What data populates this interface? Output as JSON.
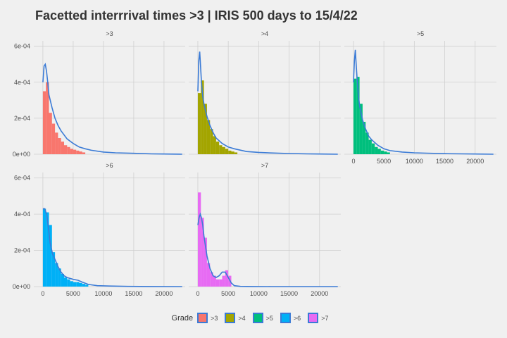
{
  "title": "Facetted interrrival times >3 | IRIS 500 days to 15/4/22",
  "chart_data": {
    "type": "histogram",
    "x_ticks": [
      0,
      5000,
      10000,
      15000,
      20000
    ],
    "x_tick_labels": [
      "0",
      "5000",
      "10000",
      "15000",
      "20000"
    ],
    "xlim": [
      -1500,
      23500
    ],
    "y_ticks": [
      0,
      0.0002,
      0.0004,
      0.0006
    ],
    "y_tick_labels": [
      "0e+00",
      "2e-04",
      "4e-04",
      "6e-04"
    ],
    "ylim": [
      0,
      0.00063
    ],
    "grid": true,
    "facets": [
      {
        "label": ">3",
        "fill": "#f8766d",
        "histogram": {
          "bin_width": 500,
          "start": 0,
          "values": [
            0.00035,
            0.0004,
            0.00023,
            0.00017,
            0.00012,
            9e-05,
            7e-05,
            5e-05,
            4e-05,
            3e-05,
            2.5e-05,
            2e-05,
            1.5e-05,
            1e-05
          ]
        },
        "density": {
          "x": [
            0,
            200,
            400,
            600,
            800,
            1000,
            1500,
            2000,
            2500,
            3000,
            4000,
            5000,
            6000,
            7000,
            8000,
            10000,
            12000,
            15000,
            18000,
            20000,
            23000
          ],
          "y": [
            0.0004,
            0.00049,
            0.0005,
            0.00046,
            0.0004,
            0.00033,
            0.00026,
            0.0002,
            0.00016,
            0.00013,
            8.5e-05,
            6e-05,
            4e-05,
            3e-05,
            2.2e-05,
            1.2e-05,
            8e-06,
            5e-06,
            2e-06,
            1e-06,
            0
          ]
        }
      },
      {
        "label": ">4",
        "fill": "#a3a500",
        "histogram": {
          "bin_width": 500,
          "start": 0,
          "values": [
            0.00034,
            0.00041,
            0.00028,
            0.00019,
            0.00014,
            0.0001,
            7e-05,
            5e-05,
            4e-05,
            3e-05,
            2e-05,
            1.5e-05,
            1e-05
          ]
        },
        "density": {
          "x": [
            0,
            150,
            300,
            450,
            600,
            800,
            1000,
            1500,
            2000,
            2500,
            3000,
            4000,
            5000,
            6000,
            8000,
            10000,
            12000,
            15000,
            18000,
            20000,
            23000
          ],
          "y": [
            0.00035,
            0.00052,
            0.00057,
            0.00049,
            0.0004,
            0.00032,
            0.00028,
            0.00021,
            0.00016,
            0.00012,
            9e-05,
            6e-05,
            4e-05,
            3e-05,
            1.5e-05,
            1e-05,
            7e-06,
            4e-06,
            2e-06,
            1e-06,
            0
          ]
        }
      },
      {
        "label": ">5",
        "fill": "#00bf7d",
        "histogram": {
          "bin_width": 500,
          "start": 0,
          "values": [
            0.00042,
            0.00043,
            0.00028,
            0.00018,
            0.00012,
            8e-05,
            6e-05,
            4e-05,
            3e-05,
            2e-05,
            1.5e-05,
            1e-05
          ]
        },
        "density": {
          "x": [
            0,
            150,
            300,
            450,
            600,
            800,
            1000,
            1500,
            2000,
            2500,
            3000,
            4000,
            5000,
            6000,
            8000,
            10000,
            12000,
            15000,
            18000,
            20000,
            23000
          ],
          "y": [
            0.0004,
            0.00052,
            0.00058,
            0.0005,
            0.00042,
            0.00033,
            0.00027,
            0.00019,
            0.00014,
            0.0001,
            8e-05,
            5e-05,
            3e-05,
            2e-05,
            1.2e-05,
            8e-06,
            6e-06,
            3e-06,
            2e-06,
            1e-06,
            0
          ]
        }
      },
      {
        "label": ">6",
        "fill": "#00b0f6",
        "histogram": {
          "bin_width": 500,
          "start": 0,
          "values": [
            0.00043,
            0.00041,
            0.00034,
            0.00019,
            0.00013,
            0.0001,
            7e-05,
            5e-05,
            4e-05,
            3e-05,
            2.5e-05,
            2.5e-05,
            2e-05,
            1.5e-05,
            1e-05
          ]
        },
        "density": {
          "x": [
            0,
            300,
            600,
            900,
            1200,
            1600,
            2000,
            2500,
            3000,
            3500,
            4000,
            5000,
            5800,
            6500,
            7500,
            9000,
            11000,
            14000,
            18000,
            23000
          ],
          "y": [
            0.00043,
            0.00043,
            0.0004,
            0.00033,
            0.00024,
            0.00018,
            0.00015,
            0.00011,
            8e-05,
            6e-05,
            5e-05,
            4e-05,
            3.5e-05,
            2.5e-05,
            1.2e-05,
            5e-06,
            3e-06,
            1e-06,
            5e-07,
            0
          ]
        }
      },
      {
        "label": ">7",
        "fill": "#e76bf3",
        "histogram": {
          "bin_width": 500,
          "start": 0,
          "values": [
            0.00052,
            0.00038,
            0.00027,
            0.00013,
            8e-05,
            6e-05,
            4e-05,
            4e-05,
            6e-05,
            9e-05,
            6e-05
          ]
        },
        "density": {
          "x": [
            0,
            200,
            400,
            600,
            800,
            1000,
            1500,
            2000,
            2500,
            3000,
            3500,
            4000,
            4500,
            5000,
            5500,
            6000,
            7000,
            9000,
            12000,
            23000
          ],
          "y": [
            0.00034,
            0.00038,
            0.0004,
            0.00038,
            0.00034,
            0.00028,
            0.00017,
            0.0001,
            6e-05,
            5e-05,
            6e-05,
            8e-05,
            8e-05,
            5e-05,
            2e-05,
            5e-06,
            1e-06,
            5e-07,
            1e-07,
            0
          ]
        }
      }
    ],
    "legend": {
      "title": "Grade",
      "position": "bottom",
      "key_outline": "#3b7bd6",
      "items": [
        {
          "label": ">3",
          "fill": "#f8766d"
        },
        {
          "label": ">4",
          "fill": "#a3a500"
        },
        {
          "label": ">5",
          "fill": "#00bf7d"
        },
        {
          "label": ">6",
          "fill": "#00b0f6"
        },
        {
          "label": ">7",
          "fill": "#e76bf3"
        }
      ]
    },
    "line_color": "#3b7bd6"
  }
}
